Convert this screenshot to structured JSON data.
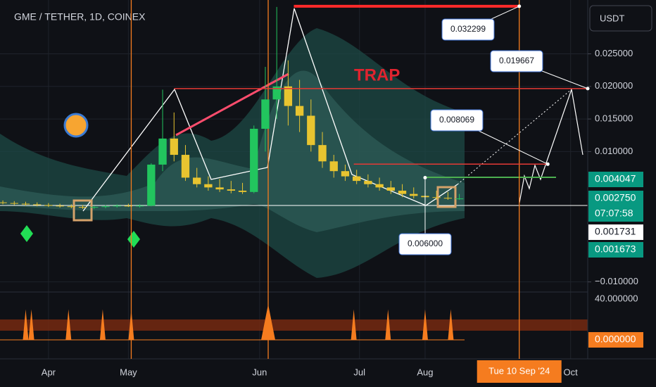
{
  "chart_data": {
    "type": "candlestick",
    "title": "GME / TETHER, 1D, COINEX",
    "currency": "USDT",
    "annotation": "TRAP",
    "up_color": "#22c55e",
    "down_color": "#e8c430",
    "x": [
      -16,
      -12,
      -8,
      -4,
      0,
      4,
      8,
      12,
      16,
      20,
      24,
      28,
      32,
      36,
      40,
      44,
      48,
      52,
      56,
      60,
      64,
      68,
      72,
      76,
      80,
      84,
      88,
      92,
      96,
      100,
      104,
      108,
      112,
      116,
      120,
      124,
      128,
      132,
      136,
      140,
      144
    ],
    "open": [
      0.0022,
      0.0021,
      0.002,
      0.0019,
      0.0018,
      0.0017,
      0.0016,
      0.0015,
      0.0014,
      0.0015,
      0.0016,
      0.0017,
      0.0016,
      0.0017,
      0.008,
      0.012,
      0.0095,
      0.006,
      0.005,
      0.0045,
      0.0042,
      0.004,
      0.0038,
      0.0135,
      0.018,
      0.02,
      0.017,
      0.0155,
      0.011,
      0.0085,
      0.007,
      0.0062,
      0.0055,
      0.005,
      0.0045,
      0.004,
      0.0035,
      0.0032,
      0.003,
      0.0029,
      0.0028
    ],
    "high": [
      0.0025,
      0.0024,
      0.0023,
      0.0022,
      0.0021,
      0.002,
      0.0019,
      0.0018,
      0.0017,
      0.0018,
      0.0019,
      0.002,
      0.0019,
      0.0082,
      0.0195,
      0.016,
      0.011,
      0.0075,
      0.0062,
      0.0058,
      0.0055,
      0.0052,
      0.014,
      0.023,
      0.0322,
      0.024,
      0.021,
      0.018,
      0.013,
      0.0095,
      0.008,
      0.0072,
      0.0065,
      0.006,
      0.0055,
      0.005,
      0.0045,
      0.0042,
      0.004,
      0.0038,
      0.0035
    ],
    "low": [
      0.0019,
      0.0018,
      0.0017,
      0.0016,
      0.0015,
      0.0014,
      0.0013,
      0.0012,
      0.0012,
      0.0013,
      0.0014,
      0.0015,
      0.0014,
      0.0016,
      0.007,
      0.0085,
      0.0055,
      0.0045,
      0.004,
      0.0038,
      0.0036,
      0.0035,
      0.0036,
      0.01,
      0.015,
      0.014,
      0.013,
      0.01,
      0.0075,
      0.006,
      0.0055,
      0.005,
      0.0045,
      0.004,
      0.0035,
      0.003,
      0.0028,
      0.0027,
      0.0026,
      0.0026,
      0.0026
    ],
    "close": [
      0.0021,
      0.002,
      0.0019,
      0.0018,
      0.0017,
      0.0016,
      0.0015,
      0.0014,
      0.0015,
      0.0016,
      0.0017,
      0.0016,
      0.0017,
      0.008,
      0.012,
      0.0095,
      0.006,
      0.005,
      0.0045,
      0.0042,
      0.004,
      0.0038,
      0.0135,
      0.018,
      0.02,
      0.017,
      0.0155,
      0.011,
      0.0085,
      0.007,
      0.0062,
      0.0055,
      0.005,
      0.0045,
      0.004,
      0.0035,
      0.0032,
      0.003,
      0.0029,
      0.0028,
      0.0028
    ],
    "xlim": [
      -17,
      189
    ],
    "xticks": [
      {
        "value": 0,
        "label": "Apr"
      },
      {
        "value": 28,
        "label": "May"
      },
      {
        "value": 74,
        "label": "Jun"
      },
      {
        "value": 109,
        "label": "Jul"
      },
      {
        "value": 132,
        "label": "Aug"
      },
      {
        "value": 183,
        "label": "Oct"
      }
    ],
    "cursor_date": {
      "value": 165,
      "label": "Tue 10 Sep '24"
    },
    "ylim": [
      -0.01155,
      0.03326
    ],
    "yticks": [
      {
        "value": 0.025,
        "label": "0.025000"
      },
      {
        "value": 0.02,
        "label": "0.020000"
      },
      {
        "value": 0.015,
        "label": "0.015000"
      },
      {
        "value": 0.01,
        "label": "0.010000"
      },
      {
        "value": -0.01,
        "label": "−0.010000"
      }
    ],
    "levels": [
      {
        "value": 0.032299,
        "label": "0.032299",
        "color": "#ff2a2a",
        "from": 86,
        "to": 165
      },
      {
        "value": 0.019667,
        "label": "0.019667",
        "color": "#e53935",
        "from": 44,
        "to": 189
      },
      {
        "value": 0.008069,
        "label": "0.008069",
        "color": "#e53935",
        "from": 107,
        "to": 175
      },
      {
        "value": 0.006,
        "label": "0.006000",
        "color": "#ffffff",
        "from": 132,
        "to": 132
      }
    ],
    "vlines": [
      29,
      77,
      165
    ],
    "price_tags": [
      {
        "label": "0.004047",
        "color": "#089981"
      },
      {
        "label": "0.002750",
        "color": "#089981"
      },
      {
        "label": "07:07:58",
        "color": "#089981"
      },
      {
        "label": "0.001731",
        "color": "#ffffff"
      },
      {
        "label": "0.001673",
        "color": "#089981"
      }
    ],
    "indicator": {
      "color": "#f57c1f",
      "x": [
        -8,
        -6,
        7,
        19,
        29,
        77,
        107,
        119,
        132,
        141
      ],
      "values": [
        30,
        30,
        30,
        30,
        30,
        35,
        30,
        30,
        30,
        30
      ],
      "ylim": [
        0,
        45
      ],
      "yticks": [
        {
          "value": 40,
          "label": "40.000000"
        }
      ],
      "last": {
        "value": 0,
        "label": "0.000000"
      }
    }
  }
}
